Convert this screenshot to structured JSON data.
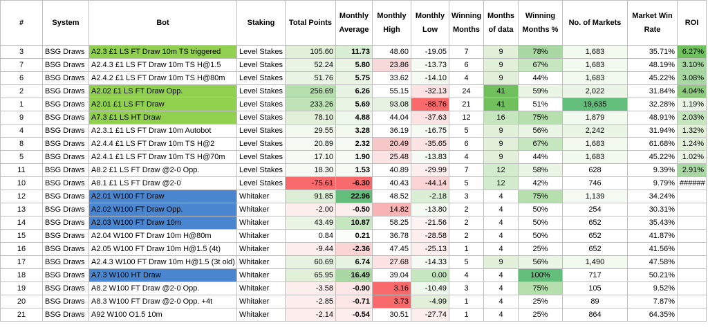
{
  "headers": [
    "#",
    "System",
    "Bot",
    "Staking",
    "Total Points",
    "Monthly Average",
    "Monthly High",
    "Monthly Low",
    "Winning Months",
    "Months of data",
    "Winning Months %",
    "No. of Markets",
    "Market Win Rate",
    "ROI"
  ],
  "rows": [
    {
      "num": "3",
      "system": "BSG Draws",
      "bot": "A2.3 £1 LS  FT Draw 10m TS triggered",
      "staking": "Level Stakes",
      "total": "105.60",
      "avg": "11.73",
      "high": "48.60",
      "low": "-19.05",
      "win": "7",
      "months": "9",
      "pct": "78%",
      "markets": "1,683",
      "rate": "35.71%",
      "roi": "6.27%",
      "bg": {
        "bot": "#92d050",
        "total": "#e2f0d9",
        "avg": "#d9eed4",
        "high": "#ffffff",
        "low": "#ffffff",
        "months": "#e2f0d9",
        "pct": "#a9d8a4",
        "markets": "#f2f9ef",
        "roi": "#70c05e"
      }
    },
    {
      "num": "7",
      "system": "BSG Draws",
      "bot": "A2.4.3 £1 LS  FT Draw 10m TS H@1.5",
      "staking": "Level Stakes",
      "total": "52.24",
      "avg": "5.80",
      "high": "23.86",
      "low": "-13.73",
      "win": "6",
      "months": "9",
      "pct": "67%",
      "markets": "1,683",
      "rate": "48.19%",
      "roi": "3.10%",
      "bg": {
        "bot": "#ffffff",
        "total": "#eaf5e6",
        "avg": "#eaf5e6",
        "high": "#f8d9d9",
        "low": "#f5fbf3",
        "months": "#e2f0d9",
        "pct": "#c6e6c0",
        "markets": "#f2f9ef",
        "roi": "#a9d8a4"
      }
    },
    {
      "num": "6",
      "system": "BSG Draws",
      "bot": "A2.4.2 £1 LS  FT Draw 10m TS H@80m",
      "staking": "Level Stakes",
      "total": "51.76",
      "avg": "5.75",
      "high": "33.62",
      "low": "-14.10",
      "win": "4",
      "months": "9",
      "pct": "44%",
      "markets": "1,683",
      "rate": "45.22%",
      "roi": "3.08%",
      "bg": {
        "bot": "#ffffff",
        "total": "#eaf5e6",
        "avg": "#eaf5e6",
        "high": "#ffffff",
        "low": "#f5fbf3",
        "months": "#e2f0d9",
        "pct": "#ffffff",
        "markets": "#f2f9ef",
        "roi": "#a9d8a4"
      }
    },
    {
      "num": "2",
      "system": "BSG Draws",
      "bot": "A2.02 £1 LS  FT Draw Opp.",
      "staking": "Level Stakes",
      "total": "256.69",
      "avg": "6.26",
      "high": "55.15",
      "low": "-32.13",
      "win": "24",
      "months": "41",
      "pct": "59%",
      "markets": "2,022",
      "rate": "31.84%",
      "roi": "4.04%",
      "bg": {
        "bot": "#92d050",
        "total": "#b6dfae",
        "avg": "#e6f3e2",
        "high": "#ffffff",
        "low": "#fbe3e3",
        "months": "#70c05e",
        "pct": "#eaf5e6",
        "markets": "#eaf5e6",
        "roi": "#8fcc80"
      }
    },
    {
      "num": "1",
      "system": "BSG Draws",
      "bot": "A2.01 £1 LS  FT Draw",
      "staking": "Level Stakes",
      "total": "233.26",
      "avg": "5.69",
      "high": "93.08",
      "low": "-88.76",
      "win": "21",
      "months": "41",
      "pct": "51%",
      "markets": "19,635",
      "rate": "32.28%",
      "roi": "1.19%",
      "bg": {
        "bot": "#92d050",
        "total": "#bfe3b7",
        "avg": "#eaf5e6",
        "high": "#e6f3e2",
        "low": "#f8696b",
        "months": "#70c05e",
        "pct": "#ffffff",
        "markets": "#63be7b",
        "roi": "#eaf5e6"
      }
    },
    {
      "num": "9",
      "system": "BSG Draws",
      "bot": "A7.3 £1 LS  HT Draw",
      "staking": "Level Stakes",
      "total": "78.10",
      "avg": "4.88",
      "high": "44.04",
      "low": "-37.63",
      "win": "12",
      "months": "16",
      "pct": "75%",
      "markets": "1,879",
      "rate": "48.91%",
      "roi": "2.03%",
      "bg": {
        "bot": "#92d050",
        "total": "#e2f0d9",
        "avg": "#eef7eb",
        "high": "#ffffff",
        "low": "#fbe3e3",
        "months": "#c6e6c0",
        "pct": "#b6dfae",
        "markets": "#f2f9ef",
        "roi": "#c6e6c0"
      }
    },
    {
      "num": "4",
      "system": "BSG Draws",
      "bot": "A2.3.1 £1 LS  FT Draw 10m Autobot",
      "staking": "Level Stakes",
      "total": "29.55",
      "avg": "3.28",
      "high": "36.19",
      "low": "-16.75",
      "win": "5",
      "months": "9",
      "pct": "56%",
      "markets": "2,242",
      "rate": "31.94%",
      "roi": "1.32%",
      "bg": {
        "bot": "#ffffff",
        "total": "#f2f9ef",
        "avg": "#f2f9ef",
        "high": "#ffffff",
        "low": "#f5fbf3",
        "months": "#e2f0d9",
        "pct": "#eaf5e6",
        "markets": "#eaf5e6",
        "roi": "#e2f0d9"
      }
    },
    {
      "num": "8",
      "system": "BSG Draws",
      "bot": "A2.4.4 £1 LS  FT Draw 10m TS H@2",
      "staking": "Level Stakes",
      "total": "20.89",
      "avg": "2.32",
      "high": "20.49",
      "low": "-35.65",
      "win": "6",
      "months": "9",
      "pct": "67%",
      "markets": "1,683",
      "rate": "61.68%",
      "roi": "1.24%",
      "bg": {
        "bot": "#ffffff",
        "total": "#f5fbf3",
        "avg": "#f5fbf3",
        "high": "#f8c8c8",
        "low": "#fbe3e3",
        "months": "#e2f0d9",
        "pct": "#c6e6c0",
        "markets": "#f2f9ef",
        "roi": "#e2f0d9"
      }
    },
    {
      "num": "5",
      "system": "BSG Draws",
      "bot": "A2.4.1 £1 LS  FT Draw 10m TS H@70m",
      "staking": "Level Stakes",
      "total": "17.10",
      "avg": "1.90",
      "high": "25.48",
      "low": "-13.83",
      "win": "4",
      "months": "9",
      "pct": "44%",
      "markets": "1,683",
      "rate": "45.22%",
      "roi": "1.02%",
      "bg": {
        "bot": "#ffffff",
        "total": "#f5fbf3",
        "avg": "#f5fbf3",
        "high": "#fbe3e3",
        "low": "#f5fbf3",
        "months": "#e2f0d9",
        "pct": "#ffffff",
        "markets": "#f2f9ef",
        "roi": "#eaf5e6"
      }
    },
    {
      "num": "11",
      "system": "BSG Draws",
      "bot": "A8.2 £1 LS  FT Draw @2-0 Opp.",
      "staking": "Level Stakes",
      "total": "18.30",
      "avg": "1.53",
      "high": "40.89",
      "low": "-29.99",
      "win": "7",
      "months": "12",
      "pct": "58%",
      "markets": "628",
      "rate": "9.39%",
      "roi": "2.91%",
      "bg": {
        "bot": "#ffffff",
        "total": "#f5fbf3",
        "avg": "#f5fbf3",
        "high": "#ffffff",
        "low": "#fdeeee",
        "months": "#d4ecce",
        "pct": "#eaf5e6",
        "markets": "#ffffff",
        "roi": "#a9d8a4"
      }
    },
    {
      "num": "10",
      "system": "BSG Draws",
      "bot": "A8.1 £1 LS  FT Draw @2-0",
      "staking": "Level Stakes",
      "total": "-75.61",
      "avg": "-6.30",
      "high": "40.43",
      "low": "-44.14",
      "win": "5",
      "months": "12",
      "pct": "42%",
      "markets": "746",
      "rate": "9.79%",
      "roi": "######",
      "bg": {
        "bot": "#ffffff",
        "total": "#f8696b",
        "avg": "#f8696b",
        "high": "#ffffff",
        "low": "#fbd5d5",
        "months": "#d4ecce",
        "pct": "#ffffff",
        "markets": "#ffffff",
        "roi": "#ffffff"
      }
    },
    {
      "num": "12",
      "system": "BSG Draws",
      "bot": "A2.01 W100 FT Draw",
      "staking": "Whitaker",
      "total": "91.85",
      "avg": "22.96",
      "high": "48.52",
      "low": "-2.18",
      "win": "3",
      "months": "4",
      "pct": "75%",
      "markets": "1,139",
      "rate": "34.24%",
      "roi": "",
      "bg": {
        "bot": "#4a86d0",
        "total": "#dcefd6",
        "avg": "#63be7b",
        "high": "#ffffff",
        "low": "#d9eed4",
        "months": "#ffffff",
        "pct": "#b6dfae",
        "markets": "#f5fbf3",
        "roi": "#ffffff"
      }
    },
    {
      "num": "13",
      "system": "BSG Draws",
      "bot": "A2.02 W100 FT Draw Opp.",
      "staking": "Whitaker",
      "total": "-2.00",
      "avg": "-0.50",
      "high": "14.82",
      "low": "-13.80",
      "win": "2",
      "months": "4",
      "pct": "50%",
      "markets": "254",
      "rate": "30.31%",
      "roi": "",
      "bg": {
        "bot": "#4a86d0",
        "total": "#fdeeee",
        "avg": "#fdeeee",
        "high": "#f8b4b4",
        "low": "#f5fbf3",
        "months": "#ffffff",
        "pct": "#ffffff",
        "markets": "#ffffff",
        "roi": "#ffffff"
      }
    },
    {
      "num": "14",
      "system": "BSG Draws",
      "bot": "A2.03 W100 FT Draw 10m",
      "staking": "Whitaker",
      "total": "43.49",
      "avg": "10.87",
      "high": "58.25",
      "low": "-21.56",
      "win": "2",
      "months": "4",
      "pct": "50%",
      "markets": "652",
      "rate": "35.43%",
      "roi": "",
      "bg": {
        "bot": "#4a86d0",
        "total": "#eaf5e6",
        "avg": "#c6e6c0",
        "high": "#ffffff",
        "low": "#fdf3f3",
        "months": "#ffffff",
        "pct": "#ffffff",
        "markets": "#ffffff",
        "roi": "#ffffff"
      }
    },
    {
      "num": "15",
      "system": "BSG Draws",
      "bot": "A2.04 W100 FT Draw 10m H@80m",
      "staking": "Whitaker",
      "total": "0.84",
      "avg": "0.21",
      "high": "36.78",
      "low": "-28.58",
      "win": "2",
      "months": "4",
      "pct": "50%",
      "markets": "652",
      "rate": "41.87%",
      "roi": "",
      "bg": {
        "bot": "#ffffff",
        "total": "#ffffff",
        "avg": "#fbfdfa",
        "high": "#ffffff",
        "low": "#fdeeee",
        "months": "#ffffff",
        "pct": "#ffffff",
        "markets": "#ffffff",
        "roi": "#ffffff"
      }
    },
    {
      "num": "16",
      "system": "BSG Draws",
      "bot": "A2.05 W100 FT Draw 10m H@1.5 (4t)",
      "staking": "Whitaker",
      "total": "-9.44",
      "avg": "-2.36",
      "high": "47.45",
      "low": "-25.13",
      "win": "1",
      "months": "4",
      "pct": "25%",
      "markets": "652",
      "rate": "41.56%",
      "roi": "",
      "bg": {
        "bot": "#ffffff",
        "total": "#fdeeee",
        "avg": "#fbd5d5",
        "high": "#ffffff",
        "low": "#fdeeee",
        "months": "#ffffff",
        "pct": "#ffffff",
        "markets": "#ffffff",
        "roi": "#ffffff"
      }
    },
    {
      "num": "17",
      "system": "BSG Draws",
      "bot": "A2.4.3 W100 FT Draw 10m H@1.5 (3t old)",
      "staking": "Whitaker",
      "total": "60.69",
      "avg": "6.74",
      "high": "27.68",
      "low": "-14.33",
      "win": "5",
      "months": "9",
      "pct": "56%",
      "markets": "1,490",
      "rate": "47.58%",
      "roi": "",
      "bg": {
        "bot": "#ffffff",
        "total": "#e6f3e2",
        "avg": "#e6f3e2",
        "high": "#fbe3e3",
        "low": "#f5fbf3",
        "months": "#e2f0d9",
        "pct": "#eaf5e6",
        "markets": "#f2f9ef",
        "roi": "#ffffff"
      }
    },
    {
      "num": "18",
      "system": "BSG Draws",
      "bot": "A7.3 W100 HT Draw",
      "staking": "Whitaker",
      "total": "65.95",
      "avg": "16.49",
      "high": "39.04",
      "low": "0.00",
      "win": "4",
      "months": "4",
      "pct": "100%",
      "markets": "717",
      "rate": "50.21%",
      "roi": "",
      "bg": {
        "bot": "#4a86d0",
        "total": "#e2f0d9",
        "avg": "#a9d8a4",
        "high": "#ffffff",
        "low": "#c6e6c0",
        "months": "#ffffff",
        "pct": "#63be7b",
        "markets": "#ffffff",
        "roi": "#ffffff"
      }
    },
    {
      "num": "19",
      "system": "BSG Draws",
      "bot": "A8.2 W100 FT Draw @2-0 Opp.",
      "staking": "Whitaker",
      "total": "-3.58",
      "avg": "-0.90",
      "high": "3.16",
      "low": "-10.49",
      "win": "3",
      "months": "4",
      "pct": "75%",
      "markets": "105",
      "rate": "9.52%",
      "roi": "",
      "bg": {
        "bot": "#ffffff",
        "total": "#fdeeee",
        "avg": "#fde6e6",
        "high": "#f8696b",
        "low": "#eef7eb",
        "months": "#ffffff",
        "pct": "#b6dfae",
        "markets": "#ffffff",
        "roi": "#ffffff"
      }
    },
    {
      "num": "20",
      "system": "BSG Draws",
      "bot": "A8.3 W100 FT Draw @2-0 Opp. +4t",
      "staking": "Whitaker",
      "total": "-2.85",
      "avg": "-0.71",
      "high": "3.73",
      "low": "-4.99",
      "win": "1",
      "months": "4",
      "pct": "25%",
      "markets": "89",
      "rate": "7.87%",
      "roi": "",
      "bg": {
        "bot": "#ffffff",
        "total": "#fdeeee",
        "avg": "#fde6e6",
        "high": "#f8696b",
        "low": "#e2f0d9",
        "months": "#ffffff",
        "pct": "#ffffff",
        "markets": "#ffffff",
        "roi": "#ffffff"
      }
    },
    {
      "num": "21",
      "system": "BSG Draws",
      "bot": "A92 W100 O1.5 10m",
      "staking": "Whitaker",
      "total": "-2.14",
      "avg": "-0.54",
      "high": "30.51",
      "low": "-27.74",
      "win": "1",
      "months": "4",
      "pct": "25%",
      "markets": "864",
      "rate": "64.35%",
      "roi": "",
      "bg": {
        "bot": "#ffffff",
        "total": "#fdeeee",
        "avg": "#fdeeee",
        "high": "#ffffff",
        "low": "#fdeeee",
        "months": "#ffffff",
        "pct": "#ffffff",
        "markets": "#ffffff",
        "roi": "#ffffff"
      }
    }
  ]
}
